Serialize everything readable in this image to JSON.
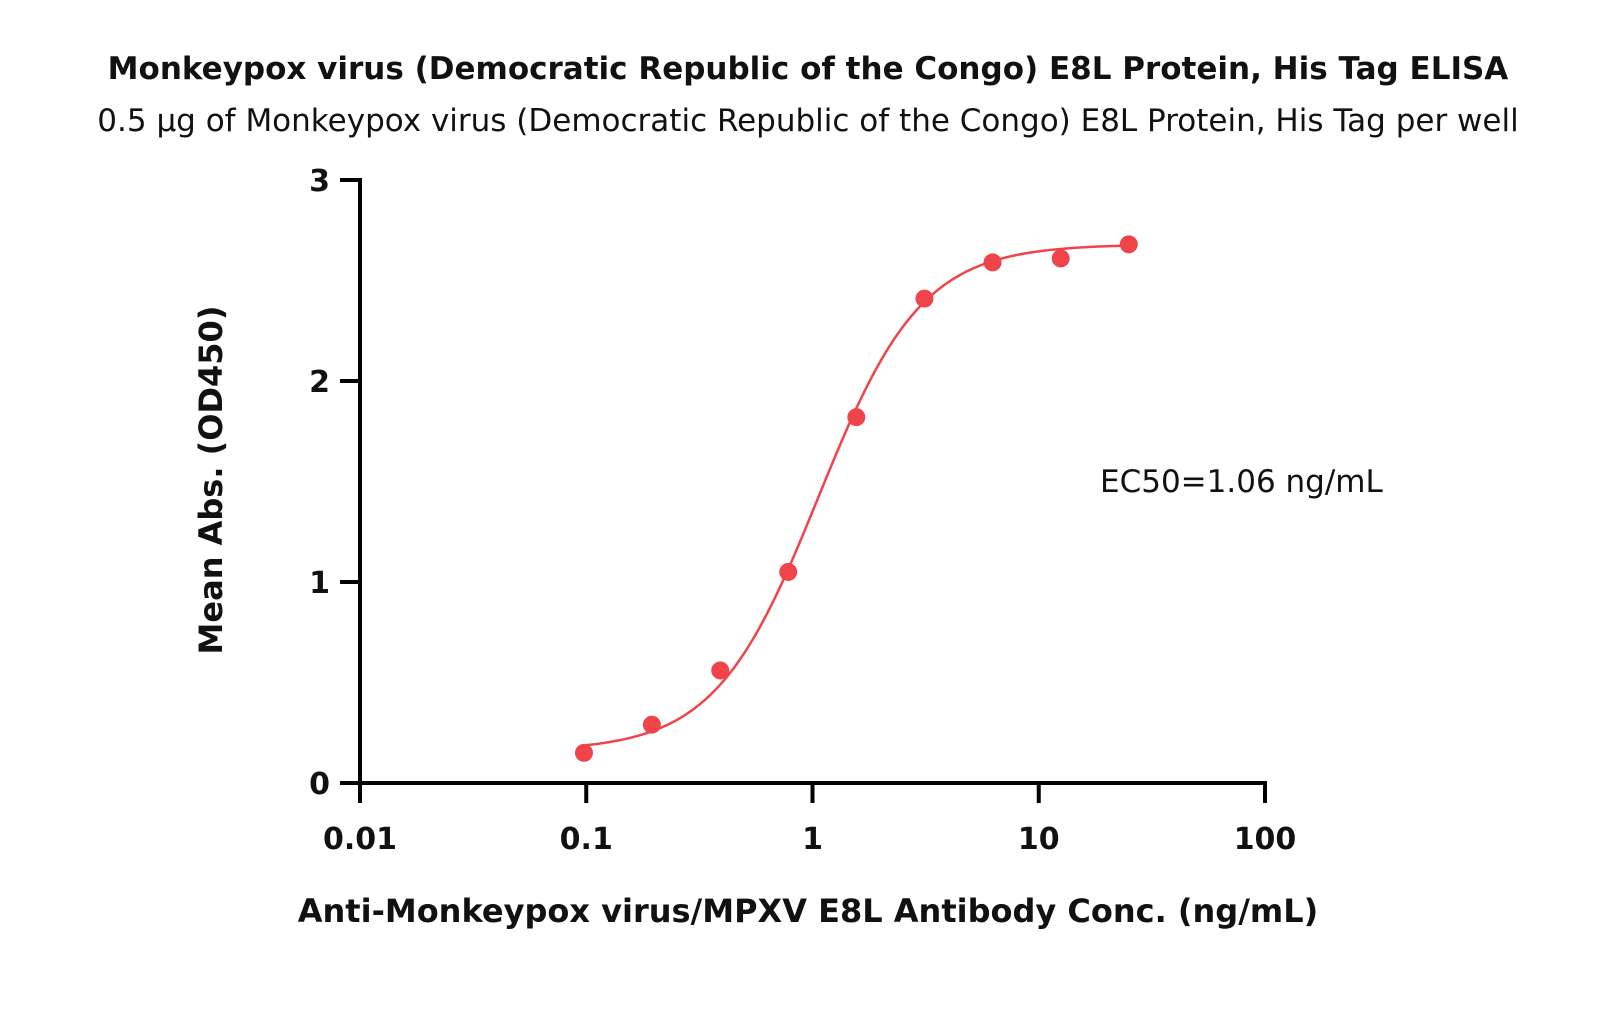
{
  "chart_data": {
    "type": "scatter",
    "title": "Monkeypox virus (Democratic Republic of the Congo) E8L Protein, His Tag ELISA",
    "subtitle": "0.5 μg of Monkeypox virus (Democratic Republic of the Congo) E8L Protein, His Tag per well",
    "xlabel": "Anti-Monkeypox virus/MPXV E8L Antibody Conc. (ng/mL)",
    "ylabel": "Mean Abs. (OD450)",
    "x_scale": "log",
    "xlim": [
      0.01,
      100
    ],
    "ylim": [
      0,
      3
    ],
    "x_ticks": [
      0.01,
      0.1,
      1,
      10,
      100
    ],
    "x_tick_labels": [
      "0.01",
      "0.1",
      "1",
      "10",
      "100"
    ],
    "y_ticks": [
      0,
      1,
      2,
      3
    ],
    "y_tick_labels": [
      "0",
      "1",
      "2",
      "3"
    ],
    "grid": false,
    "annotation": "EC50=1.06 ng/mL",
    "color": "#f0444b",
    "series": [
      {
        "x": [
          0.0977,
          0.195,
          0.391,
          0.781,
          1.5625,
          3.125,
          6.25,
          12.5,
          25
        ],
        "y": [
          0.15,
          0.29,
          0.56,
          1.05,
          1.82,
          2.41,
          2.59,
          2.61,
          2.68
        ]
      }
    ],
    "fit": {
      "model": "4PL",
      "bottom": 0.16,
      "top": 2.68,
      "ec50": 1.06,
      "hill": 1.9,
      "x_range": [
        0.0977,
        25
      ]
    }
  }
}
